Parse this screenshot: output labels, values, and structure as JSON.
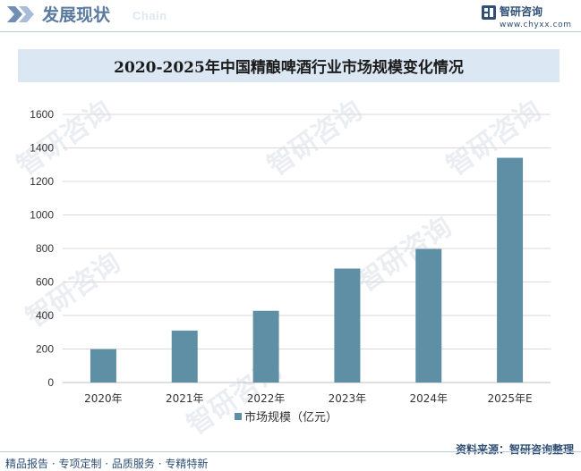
{
  "header": {
    "title": "发展现状",
    "subtitle": "Chain",
    "brand_name": "智研咨询",
    "brand_url": "www.chyxx.com"
  },
  "watermark_text": "智研咨询",
  "chart_data": {
    "type": "bar",
    "title": "2020-2025年中国精酿啤酒行业市场规模变化情况",
    "categories": [
      "2020年",
      "2021年",
      "2022年",
      "2023年",
      "2024年",
      "2025年E"
    ],
    "series": [
      {
        "name": "市场规模（亿元）",
        "values": [
          199,
          310,
          428,
          680,
          797,
          1341
        ]
      }
    ],
    "ylim": [
      0,
      1600
    ],
    "yticks": [
      0,
      200,
      400,
      600,
      800,
      1000,
      1200,
      1400,
      1600
    ],
    "xlabel": "",
    "ylabel": "",
    "grid": true,
    "legend": "bottom",
    "bar_color": "#5e8fa5"
  },
  "footer": {
    "left": "精品报告 · 专项定制 · 品质服务 · 专精特新",
    "source": "资料来源：智研咨询整理"
  }
}
